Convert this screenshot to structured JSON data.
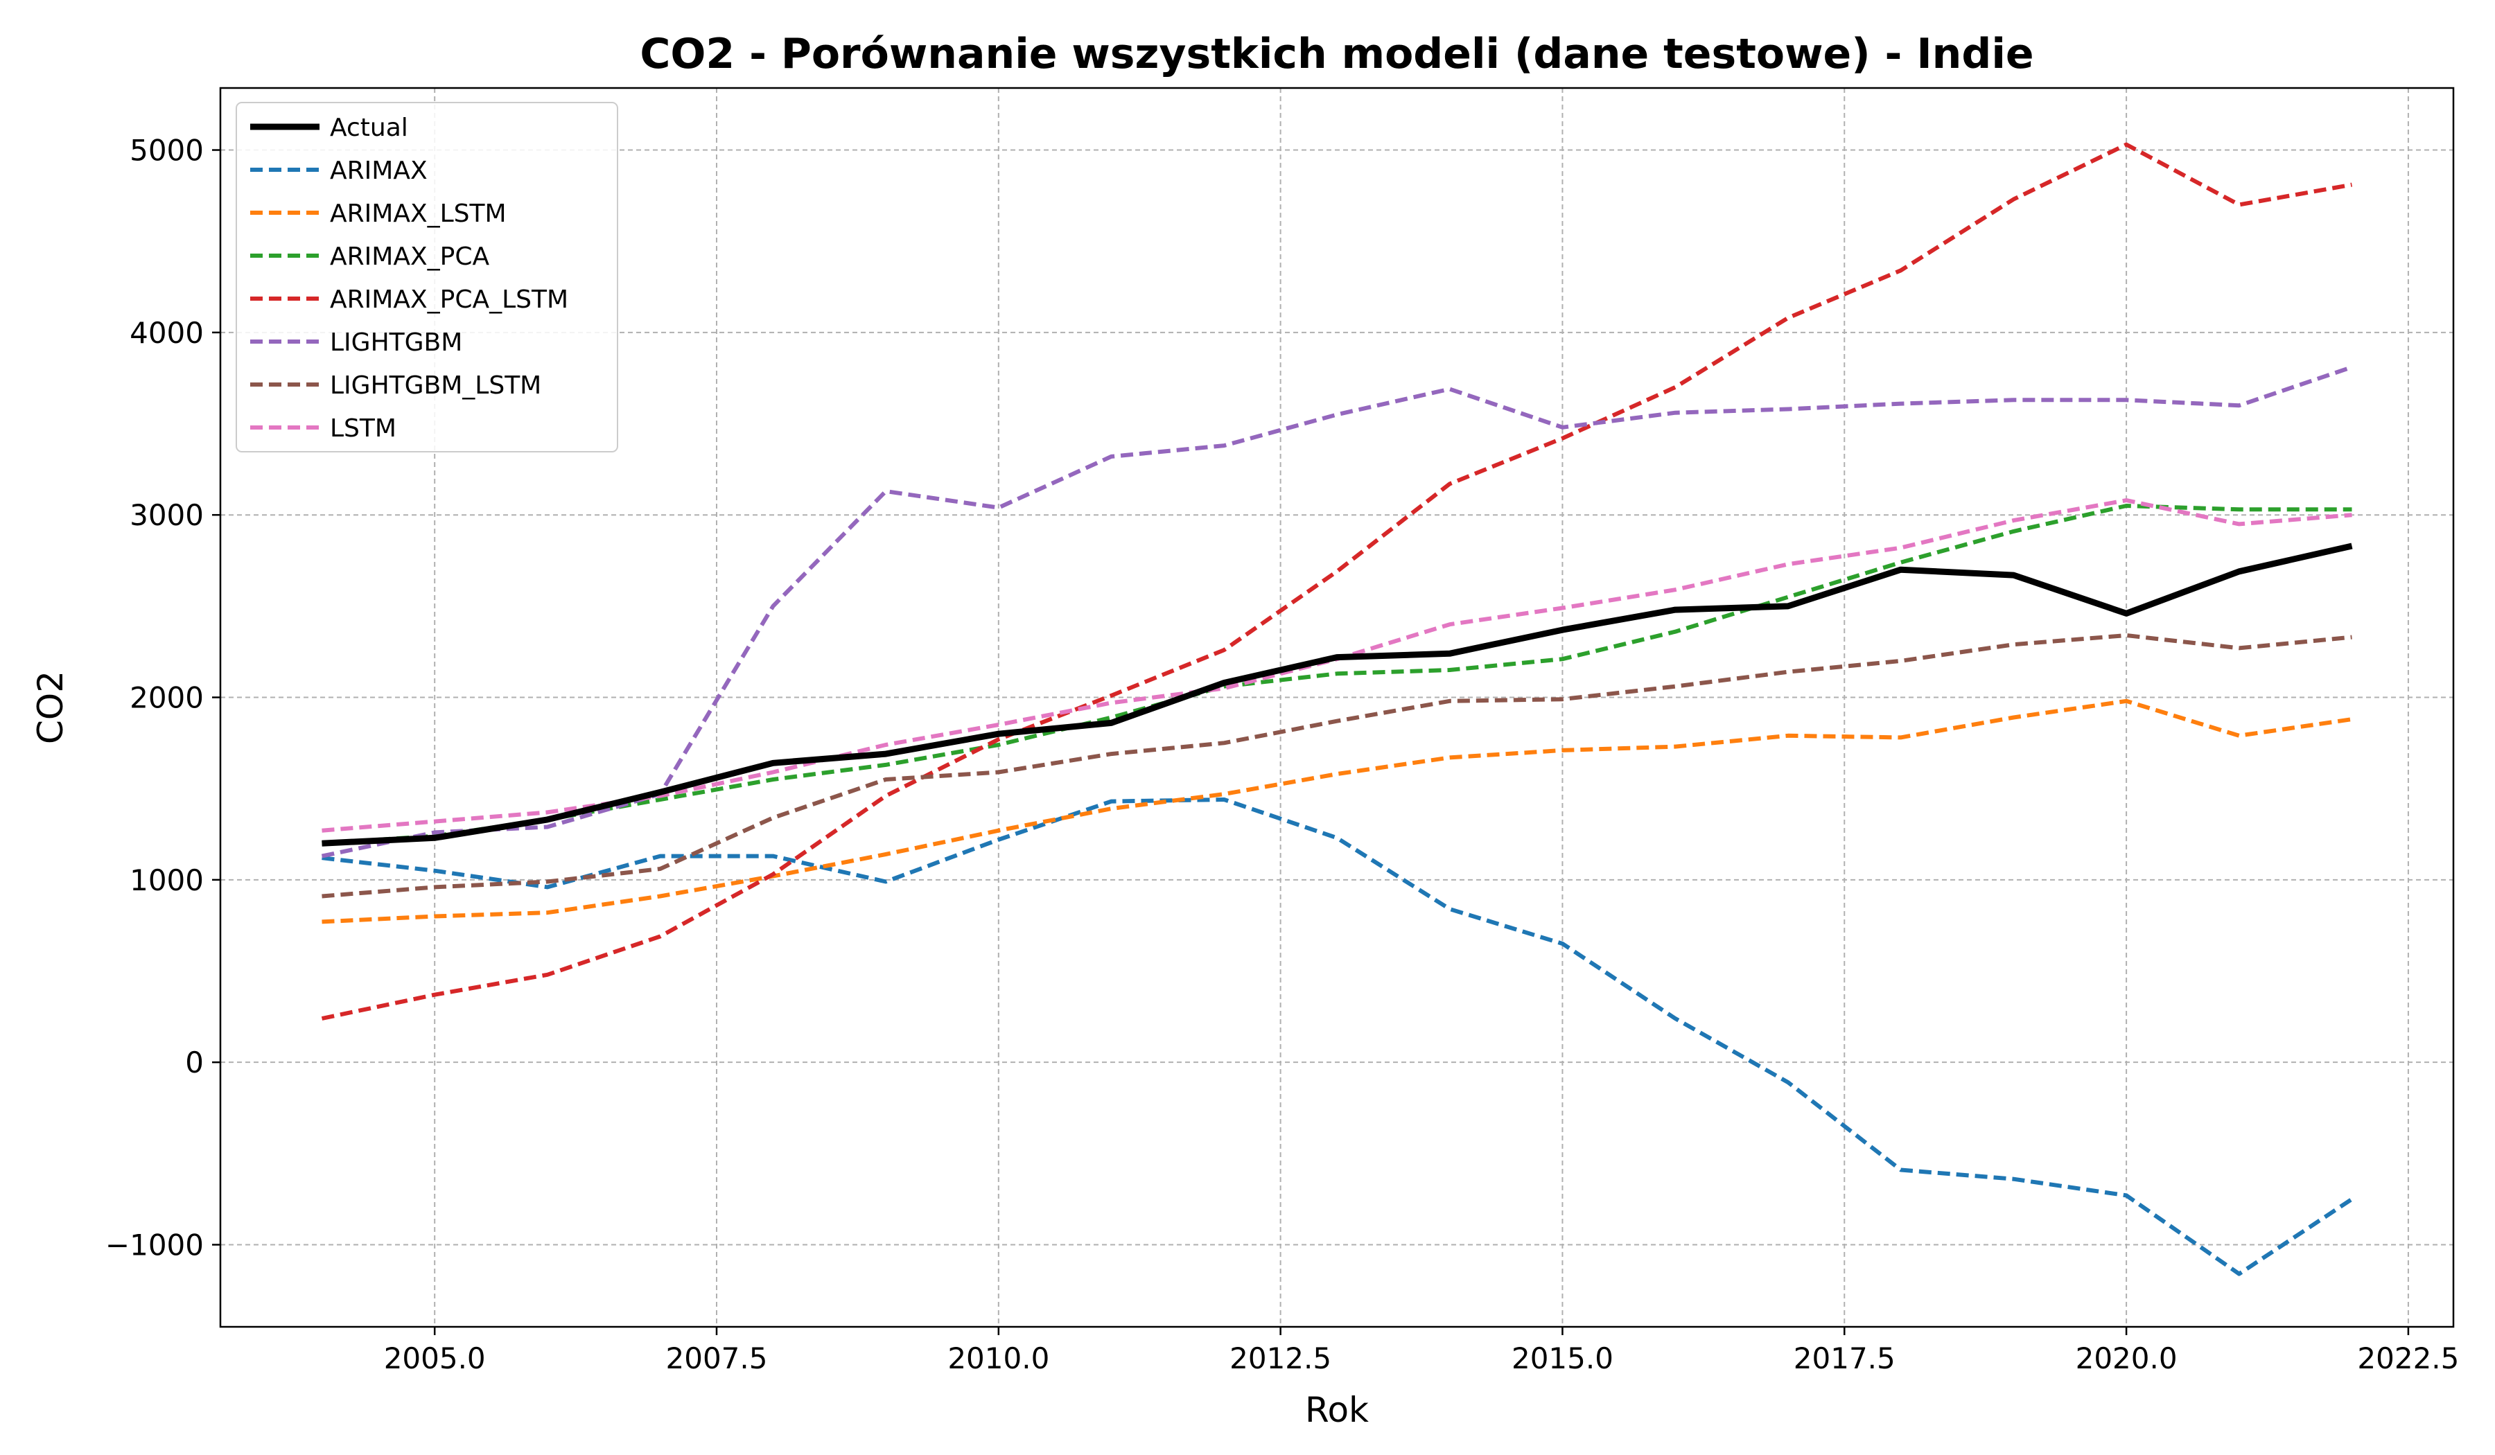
{
  "chart_data": {
    "type": "line",
    "title": "CO2 - Porównanie wszystkich modeli (dane testowe) - Indie",
    "xlabel": "Rok",
    "ylabel": "CO2",
    "xlim": [
      2003.1,
      2022.9
    ],
    "ylim": [
      -1450,
      5340
    ],
    "x_ticks": [
      2005.0,
      2007.5,
      2010.0,
      2012.5,
      2015.0,
      2017.5,
      2020.0,
      2022.5
    ],
    "x_tick_labels": [
      "2005.0",
      "2007.5",
      "2010.0",
      "2012.5",
      "2015.0",
      "2017.5",
      "2020.0",
      "2022.5"
    ],
    "y_ticks": [
      -1000,
      0,
      1000,
      2000,
      3000,
      4000,
      5000
    ],
    "y_tick_labels": [
      "−1000",
      "0",
      "1000",
      "2000",
      "3000",
      "4000",
      "5000"
    ],
    "grid": true,
    "legend_position": "top-left",
    "x": [
      2004,
      2005,
      2006,
      2007,
      2008,
      2009,
      2010,
      2011,
      2012,
      2013,
      2014,
      2015,
      2016,
      2017,
      2018,
      2019,
      2020,
      2021,
      2022
    ],
    "series": [
      {
        "name": "Actual",
        "color": "#000000",
        "style": "solid",
        "values": [
          1200,
          1230,
          1330,
          1480,
          1640,
          1690,
          1800,
          1860,
          2080,
          2220,
          2240,
          2370,
          2480,
          2500,
          2700,
          2670,
          2460,
          2690,
          2830
        ]
      },
      {
        "name": "ARIMAX",
        "color": "#1f77b4",
        "style": "dashed",
        "values": [
          1120,
          1050,
          960,
          1130,
          1130,
          990,
          1220,
          1430,
          1440,
          1230,
          840,
          650,
          240,
          -110,
          -590,
          -640,
          -730,
          -1160,
          -750
        ]
      },
      {
        "name": "ARIMAX_LSTM",
        "color": "#ff7f0e",
        "style": "dashed",
        "values": [
          770,
          800,
          820,
          910,
          1020,
          1140,
          1270,
          1390,
          1470,
          1580,
          1670,
          1710,
          1730,
          1790,
          1780,
          1890,
          1980,
          1790,
          1880
        ]
      },
      {
        "name": "ARIMAX_PCA",
        "color": "#2ca02c",
        "style": "dashed",
        "values": [
          1200,
          1240,
          1330,
          1440,
          1550,
          1630,
          1740,
          1890,
          2060,
          2130,
          2150,
          2210,
          2360,
          2550,
          2740,
          2910,
          3050,
          3030,
          3030
        ]
      },
      {
        "name": "ARIMAX_PCA_LSTM",
        "color": "#d62728",
        "style": "dashed",
        "values": [
          240,
          370,
          480,
          690,
          1030,
          1460,
          1770,
          2010,
          2260,
          2690,
          3170,
          3420,
          3700,
          4080,
          4340,
          4730,
          5030,
          4700,
          4810
        ]
      },
      {
        "name": "LIGHTGBM",
        "color": "#9467bd",
        "style": "dashed",
        "values": [
          1130,
          1260,
          1290,
          1470,
          2500,
          3130,
          3040,
          3320,
          3380,
          3550,
          3690,
          3480,
          3560,
          3580,
          3610,
          3630,
          3630,
          3600,
          3810
        ]
      },
      {
        "name": "LIGHTGBM_LSTM",
        "color": "#8c564b",
        "style": "dashed",
        "values": [
          910,
          960,
          990,
          1060,
          1340,
          1550,
          1590,
          1690,
          1750,
          1870,
          1980,
          1990,
          2060,
          2140,
          2200,
          2290,
          2340,
          2270,
          2330
        ]
      },
      {
        "name": "LSTM",
        "color": "#e377c2",
        "style": "dashed",
        "values": [
          1270,
          1320,
          1370,
          1460,
          1590,
          1740,
          1850,
          1970,
          2050,
          2210,
          2400,
          2490,
          2590,
          2730,
          2820,
          2970,
          3080,
          2950,
          3000
        ]
      }
    ]
  }
}
